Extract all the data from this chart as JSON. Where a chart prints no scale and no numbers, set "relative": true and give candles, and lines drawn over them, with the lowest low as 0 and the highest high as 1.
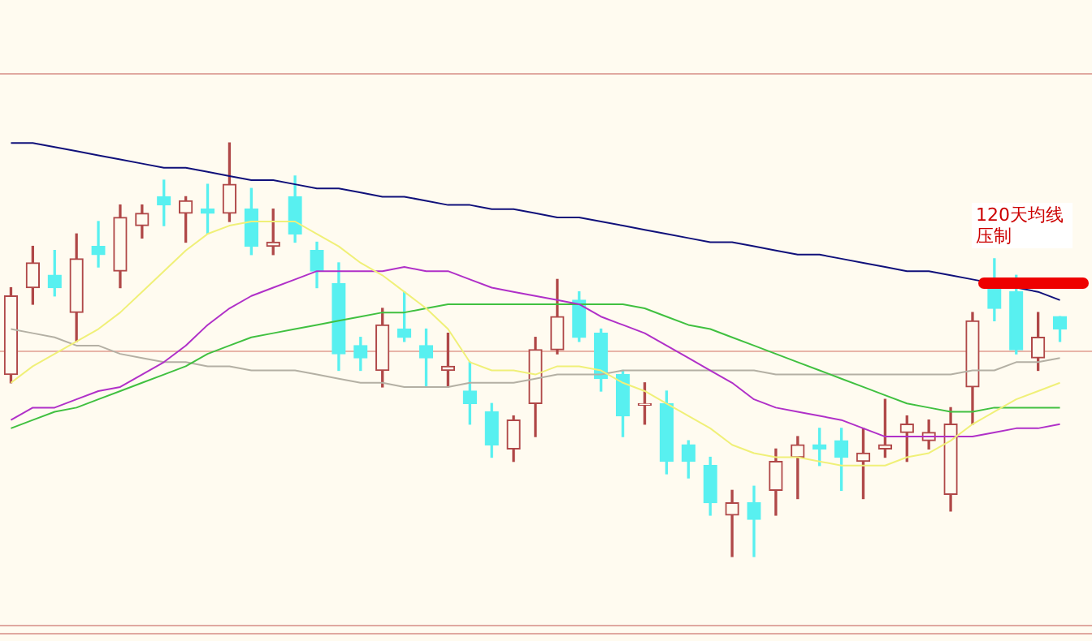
{
  "chart_data": {
    "type": "candlestick",
    "relative": true,
    "categories": [
      null,
      null,
      null,
      null,
      null,
      null,
      null,
      null,
      null,
      null,
      null,
      null,
      null,
      null,
      null,
      null,
      null,
      null,
      null,
      null,
      null,
      null,
      null,
      null,
      null,
      null,
      null,
      null,
      null,
      null,
      null,
      null,
      null,
      null,
      null,
      null,
      null,
      null,
      null,
      null,
      null,
      null,
      null,
      null,
      null,
      null,
      null,
      null,
      null
    ],
    "ohlc": [
      [
        0.44,
        0.65,
        0.42,
        0.63
      ],
      [
        0.65,
        0.75,
        0.61,
        0.71
      ],
      [
        0.68,
        0.74,
        0.63,
        0.65
      ],
      [
        0.59,
        0.78,
        0.52,
        0.72
      ],
      [
        0.75,
        0.81,
        0.7,
        0.73
      ],
      [
        0.69,
        0.85,
        0.65,
        0.82
      ],
      [
        0.8,
        0.85,
        0.77,
        0.83
      ],
      [
        0.87,
        0.91,
        0.8,
        0.85
      ],
      [
        0.83,
        0.87,
        0.76,
        0.86
      ],
      [
        0.84,
        0.9,
        0.78,
        0.83
      ],
      [
        0.83,
        1,
        0.81,
        0.9
      ],
      [
        0.84,
        0.89,
        0.73,
        0.75
      ],
      [
        0.75,
        0.84,
        0.73,
        0.76
      ],
      [
        0.87,
        0.92,
        0.76,
        0.78
      ],
      [
        0.74,
        0.76,
        0.65,
        0.69
      ],
      [
        0.66,
        0.71,
        0.45,
        0.49
      ],
      [
        0.51,
        0.53,
        0.45,
        0.48
      ],
      [
        0.45,
        0.6,
        0.41,
        0.56
      ],
      [
        0.55,
        0.64,
        0.52,
        0.53
      ],
      [
        0.51,
        0.55,
        0.41,
        0.48
      ],
      [
        0.45,
        0.54,
        0.41,
        0.46
      ],
      [
        0.4,
        0.47,
        0.32,
        0.37
      ],
      [
        0.35,
        0.37,
        0.24,
        0.27
      ],
      [
        0.26,
        0.34,
        0.23,
        0.33
      ],
      [
        0.37,
        0.53,
        0.29,
        0.5
      ],
      [
        0.5,
        0.67,
        0.49,
        0.58
      ],
      [
        0.62,
        0.64,
        0.52,
        0.53
      ],
      [
        0.54,
        0.55,
        0.4,
        0.43
      ],
      [
        0.44,
        0.45,
        0.29,
        0.34
      ],
      [
        0.37,
        0.42,
        0.32,
        0.37
      ],
      [
        0.37,
        0.4,
        0.2,
        0.23
      ],
      [
        0.27,
        0.28,
        0.19,
        0.23
      ],
      [
        0.22,
        0.24,
        0.1,
        0.13
      ],
      [
        0.1,
        0.16,
        0,
        0.13
      ],
      [
        0.13,
        0.17,
        0,
        0.09
      ],
      [
        0.16,
        0.26,
        0.1,
        0.23
      ],
      [
        0.24,
        0.29,
        0.14,
        0.27
      ],
      [
        0.27,
        0.31,
        0.22,
        0.26
      ],
      [
        0.28,
        0.31,
        0.16,
        0.24
      ],
      [
        0.23,
        0.31,
        0.14,
        0.25
      ],
      [
        0.26,
        0.38,
        0.24,
        0.27
      ],
      [
        0.3,
        0.34,
        0.23,
        0.32
      ],
      [
        0.28,
        0.33,
        0.26,
        0.3
      ],
      [
        0.15,
        0.36,
        0.11,
        0.32
      ],
      [
        0.41,
        0.59,
        0.32,
        0.57
      ],
      [
        0.65,
        0.72,
        0.57,
        0.6
      ],
      [
        0.64,
        0.68,
        0.49,
        0.5
      ],
      [
        0.48,
        0.59,
        0.45,
        0.53
      ],
      [
        0.58,
        0.58,
        0.52,
        0.55
      ]
    ],
    "colors": [
      "#b04848",
      "#b04848",
      "#58f0f0",
      "#b04848",
      "#58f0f0",
      "#b04848",
      "#b04848",
      "#58f0f0",
      "#b04848",
      "#58f0f0",
      "#b04848",
      "#58f0f0",
      "#b04848",
      "#58f0f0",
      "#58f0f0",
      "#58f0f0",
      "#58f0f0",
      "#b04848",
      "#58f0f0",
      "#58f0f0",
      "#b04848",
      "#58f0f0",
      "#58f0f0",
      "#b04848",
      "#b04848",
      "#b04848",
      "#58f0f0",
      "#58f0f0",
      "#58f0f0",
      "#b04848",
      "#58f0f0",
      "#58f0f0",
      "#58f0f0",
      "#b04848",
      "#58f0f0",
      "#b04848",
      "#b04848",
      "#58f0f0",
      "#58f0f0",
      "#b04848",
      "#b04848",
      "#b04848",
      "#b04848",
      "#b04848",
      "#b04848",
      "#58f0f0",
      "#58f0f0",
      "#b04848",
      "#58f0f0"
    ],
    "series": [
      {
        "type": "line",
        "color": "#10107a",
        "values": [
          1.0,
          1.0,
          0.99,
          0.98,
          0.97,
          0.96,
          0.95,
          0.94,
          0.94,
          0.93,
          0.92,
          0.91,
          0.91,
          0.9,
          0.89,
          0.89,
          0.88,
          0.87,
          0.87,
          0.86,
          0.85,
          0.85,
          0.84,
          0.84,
          0.83,
          0.82,
          0.82,
          0.81,
          0.8,
          0.79,
          0.78,
          0.77,
          0.76,
          0.76,
          0.75,
          0.74,
          0.73,
          0.73,
          0.72,
          0.71,
          0.7,
          0.69,
          0.69,
          0.68,
          0.67,
          null,
          null,
          0.64,
          0.62
        ]
      },
      {
        "type": "line",
        "color": "#f0f078",
        "values": [
          0.42,
          0.46,
          0.49,
          0.52,
          0.55,
          0.59,
          0.64,
          0.69,
          0.74,
          0.78,
          0.8,
          0.81,
          0.81,
          0.81,
          0.78,
          0.75,
          0.71,
          0.68,
          0.64,
          0.6,
          0.55,
          0.47,
          0.45,
          0.45,
          0.44,
          0.46,
          0.46,
          0.45,
          0.42,
          0.4,
          0.37,
          0.34,
          0.31,
          0.27,
          0.25,
          0.24,
          0.24,
          0.23,
          0.22,
          0.22,
          0.22,
          0.24,
          0.25,
          0.28,
          0.32,
          0.35,
          0.38,
          0.4,
          0.42
        ]
      },
      {
        "type": "line",
        "color": "#b030c8",
        "values": [
          0.33,
          0.36,
          0.36,
          0.38,
          0.4,
          0.41,
          0.44,
          0.47,
          0.51,
          0.56,
          0.6,
          0.63,
          0.65,
          0.67,
          0.69,
          0.69,
          0.69,
          0.69,
          0.7,
          0.69,
          0.69,
          0.67,
          0.65,
          0.64,
          0.63,
          0.62,
          0.61,
          0.58,
          0.56,
          0.54,
          0.51,
          0.48,
          0.45,
          0.42,
          0.38,
          0.36,
          0.35,
          0.34,
          0.33,
          0.31,
          0.29,
          0.29,
          0.29,
          0.29,
          0.29,
          0.3,
          0.31,
          0.31,
          0.32
        ]
      },
      {
        "type": "line",
        "color": "#40c040",
        "values": [
          0.31,
          0.33,
          0.35,
          0.36,
          0.38,
          0.4,
          0.42,
          0.44,
          0.46,
          0.49,
          0.51,
          0.53,
          0.54,
          0.55,
          0.56,
          0.57,
          0.58,
          0.59,
          0.59,
          0.6,
          0.61,
          0.61,
          0.61,
          0.61,
          0.61,
          0.61,
          0.61,
          0.61,
          0.61,
          0.6,
          0.58,
          0.56,
          0.55,
          0.53,
          0.51,
          0.49,
          0.47,
          0.45,
          0.43,
          0.41,
          0.39,
          0.37,
          0.36,
          0.35,
          0.35,
          0.36,
          0.36,
          0.36,
          0.36
        ]
      },
      {
        "type": "line",
        "color": "#b4b0a4",
        "values": [
          0.55,
          0.54,
          0.53,
          0.51,
          0.51,
          0.49,
          0.48,
          0.47,
          0.47,
          0.46,
          0.46,
          0.45,
          0.45,
          0.45,
          0.44,
          0.43,
          0.42,
          0.42,
          0.41,
          0.41,
          0.41,
          0.42,
          0.42,
          0.42,
          0.43,
          0.44,
          0.44,
          0.44,
          0.45,
          0.45,
          0.45,
          0.45,
          0.45,
          0.45,
          0.45,
          0.44,
          0.44,
          0.44,
          0.44,
          0.44,
          0.44,
          0.44,
          0.44,
          0.44,
          0.45,
          0.45,
          0.47,
          0.47,
          0.48
        ]
      }
    ],
    "ref_lines": [
      {
        "axis": "y",
        "value": 0.5,
        "color": "#e8b4a8"
      }
    ],
    "annotations": [
      {
        "text": "120天均线压制",
        "y": 0.66
      }
    ]
  }
}
